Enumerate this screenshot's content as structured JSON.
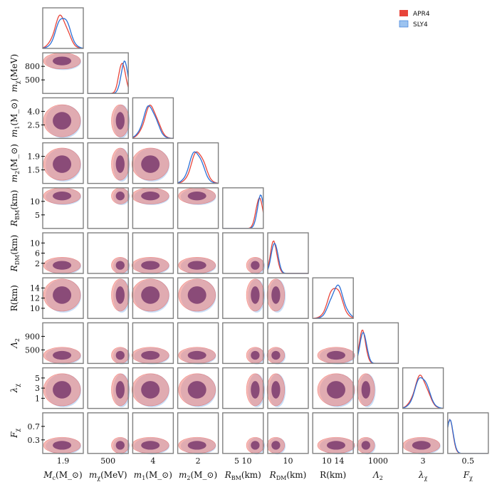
{
  "chart_data": {
    "type": "corner",
    "title": "",
    "series": [
      {
        "name": "APR4",
        "color": "#e8443a",
        "fill": "#f08a84"
      },
      {
        "name": "SLY4",
        "color": "#2a6fd6",
        "fill": "#9cc3f0"
      }
    ],
    "overlap_color": "#7a3a6e",
    "parameters": [
      {
        "id": "Mc",
        "label": "M_c(M_⊙)",
        "range": [
          1.7,
          2.1
        ],
        "ticks": [
          1.9
        ],
        "tick_labels": [
          "1.9"
        ]
      },
      {
        "id": "mchi",
        "label": "m_χ(MeV)",
        "range": [
          100,
          1000
        ],
        "ticks": [
          500,
          800
        ],
        "tick_labels": [
          "500",
          "800"
        ]
      },
      {
        "id": "m1",
        "label": "m_1(M_⊙)",
        "range": [
          2.0,
          5.0
        ],
        "ticks": [
          2.5,
          4.0
        ],
        "tick_labels": [
          "2.5",
          "4.0"
        ]
      },
      {
        "id": "m2",
        "label": "m_2(M_⊙)",
        "range": [
          1.1,
          2.0
        ],
        "ticks": [
          1.5,
          1.9
        ],
        "tick_labels": [
          "1.5",
          "1.9"
        ]
      },
      {
        "id": "RBM",
        "label": "R_BM(km)",
        "range": [
          2,
          12
        ],
        "ticks": [
          5,
          10
        ],
        "tick_labels": [
          "5",
          "10"
        ]
      },
      {
        "id": "RDM",
        "label": "R_DM(km)",
        "range": [
          0,
          14
        ],
        "ticks": [
          2,
          6,
          10
        ],
        "tick_labels": [
          "2",
          "6",
          "10"
        ]
      },
      {
        "id": "R",
        "label": "R(km)",
        "range": [
          8,
          16
        ],
        "ticks": [
          10,
          12,
          14
        ],
        "tick_labels": [
          "10",
          "12",
          "14"
        ]
      },
      {
        "id": "Lambda2",
        "label": "Λ_2",
        "range": [
          0,
          1100
        ],
        "ticks": [
          500,
          900
        ],
        "tick_labels": [
          "500",
          "900"
        ]
      },
      {
        "id": "lambdachi",
        "label": "λ_χ",
        "range": [
          0,
          7
        ],
        "ticks": [
          1,
          3,
          5
        ],
        "tick_labels": [
          "1",
          "3",
          "5"
        ]
      },
      {
        "id": "Fchi",
        "label": "F_χ",
        "range": [
          0,
          1
        ],
        "ticks": [
          0.3,
          0.7
        ],
        "tick_labels": [
          "0.3",
          "0.7"
        ]
      }
    ],
    "bottom_tick_labels": [
      "1.9",
      "500",
      "4",
      "2",
      "5   10",
      "10",
      "10   14",
      "1000",
      "3",
      "0.5"
    ],
    "bottom_axis_labels": [
      "M_c(M_⊙)",
      "m_χ(MeV)",
      "m_1(M_⊙)",
      "m_2(M_⊙)",
      "R_BM(km)",
      "R_DM(km)",
      "R(km)",
      "Λ_2",
      "λ_χ",
      "F_χ"
    ],
    "left_tick_labels": [
      [],
      [
        "800",
        "500"
      ],
      [
        "4.0",
        "2.5"
      ],
      [
        "1.9",
        "1.5"
      ],
      [
        "10",
        "5"
      ],
      [
        "10",
        "6",
        "2"
      ],
      [
        "14",
        "12",
        "10"
      ],
      [
        "900",
        "500"
      ],
      [
        "5",
        "3",
        "1"
      ],
      [
        "0.7",
        "0.3"
      ]
    ],
    "left_axis_labels": [
      "",
      "m_χ(MeV)",
      "m_1(M_⊙)",
      "m_2(M_⊙)",
      "R_BM(km)",
      "R_DM(km)",
      "R(km)",
      "Λ_2",
      "λ_χ",
      "F_χ"
    ],
    "marginal_peaks": [
      {
        "APR4": 0.45,
        "SLY4": 0.5
      },
      {
        "APR4": 0.85,
        "SLY4": 0.9
      },
      {
        "APR4": 0.45,
        "SLY4": 0.42
      },
      {
        "APR4": 0.5,
        "SLY4": 0.45
      },
      {
        "APR4": 0.9,
        "SLY4": 0.93
      },
      {
        "APR4": 0.15,
        "SLY4": 0.17
      },
      {
        "APR4": 0.55,
        "SLY4": 0.6
      },
      {
        "APR4": 0.12,
        "SLY4": 0.14
      },
      {
        "APR4": 0.45,
        "SLY4": 0.47
      },
      {
        "APR4": 0.05,
        "SLY4": 0.06
      }
    ],
    "legend": {
      "position": "top-right",
      "entries": [
        "APR4",
        "SLY4"
      ]
    }
  }
}
